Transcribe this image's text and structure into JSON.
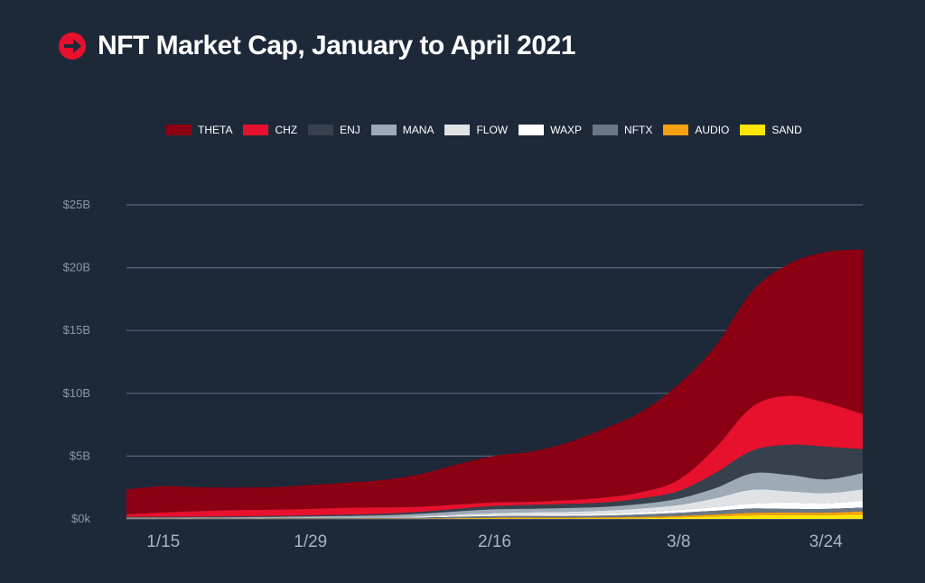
{
  "title": "NFT Market Cap, January to April 2021",
  "colors": {
    "background": "#1d2939",
    "grid": "#56637a",
    "title_icon": "#e8112d"
  },
  "chart_data": {
    "type": "area",
    "stacked": true,
    "title": "NFT Market Cap, January to April 2021",
    "xlabel": "",
    "ylabel": "",
    "ylim": [
      0,
      25
    ],
    "y_unit": "billion USD",
    "yticks": [
      0,
      5,
      10,
      15,
      20,
      25
    ],
    "ytick_labels": [
      "$0k",
      "$5B",
      "$10B",
      "$15B",
      "$20B",
      "$25B"
    ],
    "x_tick_labels": [
      "1/15",
      "1/29",
      "2/16",
      "3/8",
      "3/24"
    ],
    "x_tick_index": [
      1,
      5,
      10,
      15,
      19
    ],
    "legend_position": "top-center",
    "grid": true,
    "series": [
      {
        "name": "SAND",
        "color": "#ffe600",
        "values": [
          0,
          0,
          0,
          0,
          0,
          0,
          0,
          0,
          0,
          0.02,
          0.03,
          0.03,
          0.03,
          0.04,
          0.06,
          0.12,
          0.2,
          0.28,
          0.3,
          0.3,
          0.35
        ]
      },
      {
        "name": "AUDIO",
        "color": "#f5a210",
        "values": [
          0.02,
          0.02,
          0.02,
          0.02,
          0.02,
          0.02,
          0.02,
          0.03,
          0.03,
          0.05,
          0.07,
          0.07,
          0.07,
          0.08,
          0.1,
          0.12,
          0.15,
          0.2,
          0.2,
          0.2,
          0.25
        ]
      },
      {
        "name": "NFTX",
        "color": "#6b7784",
        "values": [
          0.02,
          0.02,
          0.02,
          0.03,
          0.03,
          0.05,
          0.06,
          0.06,
          0.08,
          0.1,
          0.12,
          0.13,
          0.14,
          0.15,
          0.2,
          0.25,
          0.3,
          0.35,
          0.3,
          0.3,
          0.3
        ]
      },
      {
        "name": "WAXP",
        "color": "#ffffff",
        "values": [
          0.02,
          0.02,
          0.02,
          0.02,
          0.03,
          0.03,
          0.04,
          0.05,
          0.06,
          0.08,
          0.1,
          0.12,
          0.13,
          0.14,
          0.18,
          0.22,
          0.3,
          0.4,
          0.5,
          0.45,
          0.55
        ]
      },
      {
        "name": "FLOW",
        "color": "#dfe3e6",
        "values": [
          0,
          0,
          0,
          0,
          0,
          0,
          0,
          0,
          0.05,
          0.1,
          0.15,
          0.18,
          0.2,
          0.25,
          0.3,
          0.4,
          0.7,
          1.1,
          0.9,
          0.8,
          0.9
        ]
      },
      {
        "name": "MANA",
        "color": "#9eaab6",
        "values": [
          0.05,
          0.05,
          0.06,
          0.07,
          0.08,
          0.1,
          0.12,
          0.15,
          0.2,
          0.25,
          0.3,
          0.28,
          0.3,
          0.3,
          0.35,
          0.5,
          0.8,
          1.3,
          1.3,
          1.1,
          1.3
        ]
      },
      {
        "name": "ENJ",
        "color": "#36414d",
        "values": [
          0.05,
          0.05,
          0.05,
          0.06,
          0.07,
          0.08,
          0.1,
          0.12,
          0.15,
          0.2,
          0.25,
          0.3,
          0.32,
          0.35,
          0.45,
          0.6,
          1.2,
          1.8,
          2.4,
          2.6,
          1.9
        ]
      },
      {
        "name": "CHZ",
        "color": "#e8112d",
        "values": [
          0.2,
          0.35,
          0.45,
          0.5,
          0.5,
          0.52,
          0.55,
          0.5,
          0.4,
          0.35,
          0.3,
          0.25,
          0.3,
          0.4,
          0.5,
          0.9,
          2.0,
          3.5,
          3.9,
          3.5,
          2.8
        ]
      },
      {
        "name": "THETA",
        "color": "#8b0012",
        "values": [
          2.0,
          2.1,
          1.9,
          1.8,
          1.8,
          1.9,
          2.0,
          2.2,
          2.6,
          3.2,
          3.7,
          4.0,
          4.6,
          5.5,
          6.4,
          7.6,
          8.1,
          9.2,
          10.5,
          12.0,
          13.1
        ]
      }
    ]
  }
}
